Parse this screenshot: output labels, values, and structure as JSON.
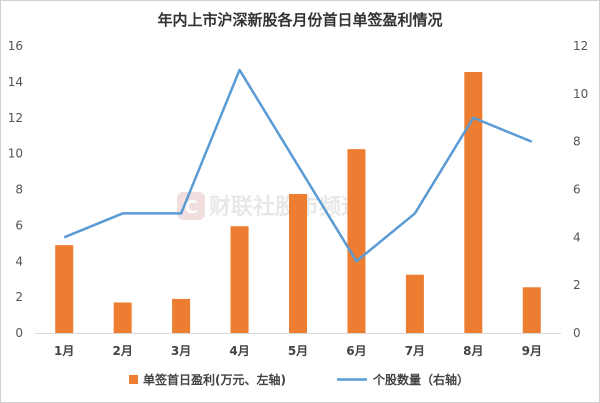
{
  "chart_data": {
    "type": "bar+line",
    "title": "年内上市沪深新股各月份首日单签盈利情况",
    "categories": [
      "1月",
      "2月",
      "3月",
      "4月",
      "5月",
      "6月",
      "7月",
      "8月",
      "9月"
    ],
    "series": [
      {
        "name": "单签首日盈利(万元、左轴)",
        "type": "bar",
        "axis": "left",
        "color": "#ed7d31",
        "values": [
          4.9,
          1.7,
          1.9,
          5.95,
          7.75,
          10.25,
          3.25,
          14.55,
          2.55
        ]
      },
      {
        "name": "个股数量（右轴）",
        "type": "line",
        "axis": "right",
        "color": "#5b9bd5",
        "values": [
          4,
          5,
          5,
          11,
          7,
          3,
          5,
          9,
          8
        ]
      }
    ],
    "y_left": {
      "min": 0,
      "max": 16,
      "ticks": [
        0,
        2,
        4,
        6,
        8,
        10,
        12,
        14,
        16
      ]
    },
    "y_right": {
      "min": 0,
      "max": 12,
      "ticks": [
        0,
        2,
        4,
        6,
        8,
        10,
        12
      ]
    },
    "grid": false,
    "legend_position": "bottom"
  },
  "watermark": {
    "logo_letter": "C",
    "text": "财联社股市频道"
  }
}
